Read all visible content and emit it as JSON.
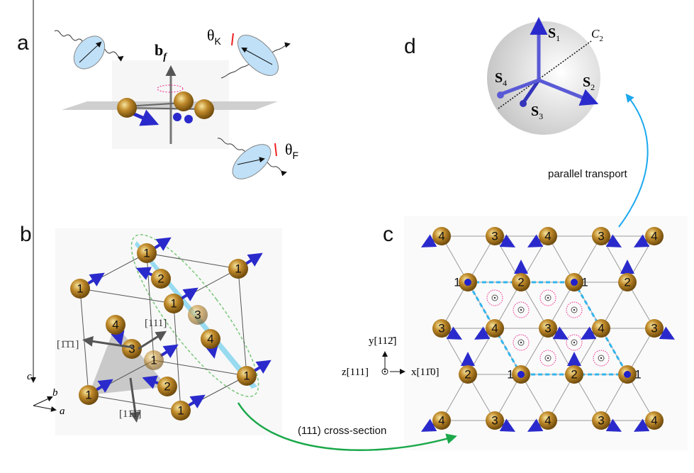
{
  "panels": {
    "a": {
      "label": "a",
      "field_label": "b",
      "field_sub": "f",
      "theta_k": "θ",
      "theta_k_sub": "K",
      "theta_f": "θ",
      "theta_f_sub": "F"
    },
    "b": {
      "label": "b",
      "directions": [
        "[1̄1̄1]",
        "[111]",
        "[11̄1̄]"
      ],
      "axes": {
        "c": "c",
        "b": "b",
        "a": "a"
      },
      "atoms": [
        "1",
        "1",
        "1",
        "2",
        "1",
        "3",
        "4",
        "3",
        "1",
        "4",
        "1",
        "2",
        "1",
        "1"
      ]
    },
    "c": {
      "label": "c",
      "rows": [
        [
          "4",
          "3",
          "4",
          "3",
          "4"
        ],
        [
          "",
          "2",
          "",
          "2"
        ],
        [
          "3",
          "4",
          "3",
          "4",
          "3"
        ],
        [
          "2",
          "",
          "2",
          ""
        ],
        [
          "4",
          "3",
          "4",
          "3",
          "4"
        ]
      ],
      "site_one_label": "1",
      "axes": {
        "y": "y[112̄]",
        "z": "z[111]",
        "x": "x[11̄0]"
      }
    },
    "d": {
      "label": "d",
      "spins": [
        "S",
        "S",
        "S",
        "S"
      ],
      "spin_subs": [
        "1",
        "2",
        "3",
        "4"
      ],
      "axis": "C",
      "axis_sub": "2"
    }
  },
  "arrows": {
    "cross_section": "(111) cross-section",
    "parallel_transport": "parallel transport"
  },
  "colors": {
    "atom": "#b8862b",
    "spin": "#2a2acc",
    "plane": "#7fd3ef",
    "green_arrow": "#1aa84a",
    "blue_arrow": "#1ba8ee",
    "chirality": "#ee2a8a",
    "cell": "#33b5ee"
  }
}
